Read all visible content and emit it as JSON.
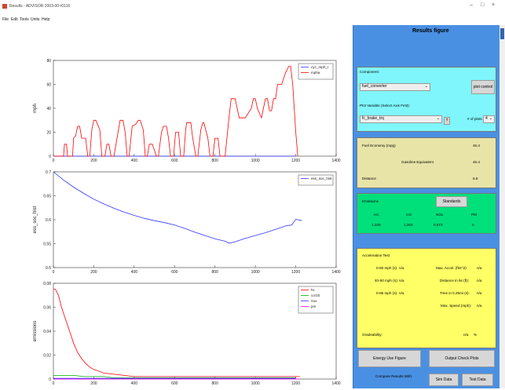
{
  "window": {
    "title": "Results - ADVISOR 2003-00-r0116",
    "min_icon": "minimize-icon",
    "max_icon": "maximize-icon",
    "close_icon": "close-icon"
  },
  "menu": [
    "File",
    "Edit",
    "Tools",
    "Units",
    "Help"
  ],
  "colors": {
    "panel_bg": "#4a90e2",
    "cyan": "#7ff6fb",
    "beige": "#e8e4a8",
    "green": "#00e07a",
    "yellow": "#ffff66",
    "red": "#ff0000",
    "blue": "#3333ff",
    "green_line": "#00aa00",
    "magenta": "#ff00ff"
  },
  "panel": {
    "title": "Results figure",
    "component_label": "Component:",
    "component_value": "fuel_converter",
    "plot_control_label": "plot control",
    "plot_variable_label": "Plot Variable (Select Axis First):",
    "plot_variable_value": "fc_brake_trq",
    "help_label": "?",
    "num_plots_label": "# of plots",
    "num_plots_value": "4",
    "fuel_economy_label": "Fuel Economy (mpg)",
    "fuel_economy_value": "46.4",
    "gasoline_equiv_label": "Gasoline Equivalent",
    "gasoline_equiv_value": "46.4",
    "distance_label": "Distance",
    "distance_value": "6.8",
    "emissions_label": "Emissions",
    "standards_label": "Standards",
    "emissions_headers": [
      "HC",
      "CO",
      "NOx",
      "PM"
    ],
    "emissions_values": [
      "1.239",
      "1.263",
      "0.573",
      "0"
    ],
    "accel_title": "Acceleration Test",
    "accel_left": [
      {
        "label": "0-60 mph (s):",
        "value": "n/a"
      },
      {
        "label": "40-60 mph (s):",
        "value": "n/a"
      },
      {
        "label": "0-85 mph (s):",
        "value": "n/a"
      }
    ],
    "accel_right": [
      {
        "label": "Max. Accel. (ft/s^2):",
        "value": "n/a"
      },
      {
        "label": "Distance in 5s (ft):",
        "value": "n/a"
      },
      {
        "label": "Time in 0.25mi (s):",
        "value": "n/a"
      },
      {
        "label": "Max. Speed (mph):",
        "value": "n/a"
      }
    ],
    "gradeability_label": "Gradeability:",
    "gradeability_value": "n/a",
    "gradeability_unit": "%",
    "energy_use_label": "Energy Use Figure",
    "output_check_label": "Output Check Plots",
    "compare_label": "Compare Results With:",
    "sim_data_label": "Sim Data",
    "test_data_label": "Test Data"
  },
  "chart_data": [
    {
      "type": "line",
      "ylabel": "mph",
      "ylim": [
        0,
        80
      ],
      "xlim": [
        0,
        1400
      ],
      "xticks": [
        "0",
        "200",
        "400",
        "600",
        "800",
        "1000",
        "1200",
        "1400"
      ],
      "yticks": [
        "0",
        "20",
        "40",
        "60",
        "80"
      ],
      "series": [
        {
          "name": "cyc_mph_r",
          "color": "#3333ff",
          "x": [
            0,
            1200
          ],
          "y": [
            0,
            0
          ]
        },
        {
          "name": "mpha",
          "color": "#ff0000",
          "x": [
            0,
            50,
            55,
            65,
            70,
            95,
            100,
            110,
            120,
            130,
            140,
            160,
            170,
            180,
            190,
            200,
            210,
            230,
            240,
            255,
            265,
            275,
            285,
            300,
            320,
            330,
            345,
            355,
            365,
            375,
            390,
            410,
            420,
            430,
            445,
            455,
            465,
            475,
            490,
            510,
            520,
            535,
            545,
            560,
            570,
            580,
            595,
            605,
            620,
            630,
            645,
            655,
            660,
            680,
            690,
            705,
            715,
            730,
            740,
            745,
            765,
            775,
            790,
            800,
            815,
            825,
            850,
            870,
            880,
            900,
            910,
            920,
            930,
            950,
            980,
            990,
            1000,
            1010,
            1030,
            1040,
            1050,
            1060,
            1070,
            1080,
            1090,
            1100,
            1110,
            1130,
            1150,
            1165,
            1175,
            1185,
            1200,
            1210
          ],
          "y": [
            0,
            0,
            10,
            10,
            0,
            0,
            15,
            17,
            25,
            25,
            15,
            15,
            0,
            0,
            22,
            30,
            30,
            22,
            0,
            0,
            10,
            10,
            0,
            0,
            20,
            30,
            30,
            20,
            0,
            0,
            25,
            27,
            30,
            30,
            22,
            0,
            0,
            10,
            10,
            0,
            0,
            20,
            25,
            25,
            15,
            0,
            0,
            20,
            20,
            0,
            0,
            22,
            28,
            28,
            15,
            0,
            0,
            22,
            28,
            28,
            15,
            0,
            0,
            15,
            15,
            0,
            0,
            33,
            48,
            48,
            40,
            32,
            32,
            32,
            40,
            48,
            48,
            40,
            32,
            40,
            48,
            48,
            38,
            38,
            48,
            48,
            60,
            60,
            70,
            75,
            75,
            60,
            20,
            0
          ]
        }
      ]
    },
    {
      "type": "line",
      "ylabel": "ess_soc_hist",
      "ylim": [
        0.5,
        0.7
      ],
      "xlim": [
        0,
        1400
      ],
      "xticks": [
        "0",
        "200",
        "400",
        "600",
        "800",
        "1000",
        "1200",
        "1400"
      ],
      "yticks": [
        "0.5",
        "0.55",
        "0.6",
        "0.65",
        "0.7"
      ],
      "series": [
        {
          "name": "ess_soc_hist",
          "color": "#3333ff",
          "x": [
            0,
            50,
            100,
            150,
            200,
            250,
            300,
            350,
            400,
            450,
            500,
            550,
            600,
            650,
            700,
            750,
            800,
            850,
            870,
            900,
            950,
            1000,
            1050,
            1100,
            1150,
            1180,
            1200,
            1210,
            1230
          ],
          "y": [
            0.7,
            0.683,
            0.668,
            0.655,
            0.643,
            0.633,
            0.624,
            0.616,
            0.609,
            0.603,
            0.598,
            0.594,
            0.589,
            0.582,
            0.574,
            0.567,
            0.56,
            0.555,
            0.551,
            0.554,
            0.561,
            0.567,
            0.573,
            0.58,
            0.587,
            0.589,
            0.601,
            0.6,
            0.598
          ]
        }
      ]
    },
    {
      "type": "line",
      "ylabel": "emissions",
      "ylim": [
        0,
        0.08
      ],
      "xlim": [
        0,
        1400
      ],
      "xticks": [
        "0",
        "200",
        "400",
        "600",
        "800",
        "1000",
        "1200",
        "1400"
      ],
      "yticks": [
        "0",
        "0.02",
        "0.04",
        "0.06",
        "0.08"
      ],
      "series": [
        {
          "name": "hc",
          "color": "#ff0000",
          "x": [
            0,
            10,
            25,
            40,
            60,
            80,
            100,
            120,
            140,
            160,
            180,
            200,
            250,
            300,
            350,
            400,
            500,
            600,
            700,
            800,
            900,
            1000,
            1100,
            1200,
            1220
          ],
          "y": [
            0.075,
            0.075,
            0.07,
            0.06,
            0.05,
            0.04,
            0.03,
            0.022,
            0.017,
            0.013,
            0.01,
            0.008,
            0.005,
            0.004,
            0.003,
            0.002,
            0.002,
            0.002,
            0.002,
            0.002,
            0.002,
            0.002,
            0.002,
            0.002,
            0.002
          ]
        },
        {
          "name": "co/10",
          "color": "#00aa00",
          "x": [
            0,
            50,
            100,
            150,
            200,
            250,
            300,
            400,
            500,
            600,
            700,
            800,
            900,
            1000,
            1100,
            1200
          ],
          "y": [
            0.003,
            0.003,
            0.003,
            0.002,
            0.002,
            0.002,
            0.001,
            0.001,
            0.001,
            0.001,
            0.001,
            0.001,
            0.001,
            0.001,
            0.001,
            0.001
          ]
        },
        {
          "name": "nox",
          "color": "#3333ff",
          "x": [
            0,
            200,
            400,
            600,
            800,
            1000,
            1200
          ],
          "y": [
            0.0005,
            0.0005,
            0.0005,
            0.0005,
            0.0005,
            0.0005,
            0.0005
          ]
        },
        {
          "name": "pm",
          "color": "#ff00ff",
          "x": [
            0,
            1220
          ],
          "y": [
            0,
            0
          ]
        }
      ]
    }
  ]
}
